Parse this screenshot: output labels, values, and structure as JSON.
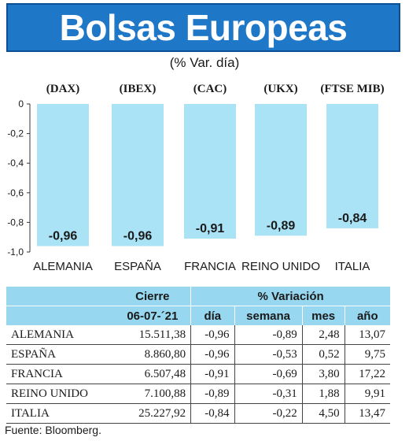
{
  "header": {
    "title": "Bolsas Europeas"
  },
  "subtitle": "(% Var. día)",
  "chart_data": {
    "type": "bar",
    "tickers": [
      "(DAX)",
      "(IBEX)",
      "(CAC)",
      "(UKX)",
      "(FTSE MIB)"
    ],
    "categories": [
      "ALEMANIA",
      "ESPAÑA",
      "FRANCIA",
      "REINO UNIDO",
      "ITALIA"
    ],
    "values": [
      -0.96,
      -0.96,
      -0.91,
      -0.89,
      -0.84
    ],
    "value_labels": [
      "-0,96",
      "-0,96",
      "-0,91",
      "-0,89",
      "-0,84"
    ],
    "ylim": [
      -1.0,
      0
    ],
    "yticks": [
      0,
      -0.2,
      -0.4,
      -0.6,
      -0.8,
      -1.0
    ],
    "ytick_labels": [
      "0",
      "-0,2",
      "-0,4",
      "-0,6",
      "-0,8",
      "-1,0"
    ],
    "bar_color": "#a9e3f5",
    "grid": false
  },
  "table": {
    "group_headers": {
      "cierre": "Cierre",
      "variacion": "% Variación"
    },
    "sub_headers": {
      "cierre_date": "06-07-´21",
      "dia": "día",
      "semana": "semana",
      "mes": "mes",
      "ano": "año"
    },
    "rows": [
      {
        "name": "ALEMANIA",
        "cierre": "15.511,38",
        "dia": "-0,96",
        "semana": "-0,89",
        "mes": "2,48",
        "ano": "13,07"
      },
      {
        "name": "ESPAÑA",
        "cierre": "8.860,80",
        "dia": "-0,96",
        "semana": "-0,53",
        "mes": "0,52",
        "ano": "9,75"
      },
      {
        "name": "FRANCIA",
        "cierre": "6.507,48",
        "dia": "-0,91",
        "semana": "-0,69",
        "mes": "3,80",
        "ano": "17,22"
      },
      {
        "name": "REINO UNIDO",
        "cierre": "7.100,88",
        "dia": "-0,89",
        "semana": "-0,31",
        "mes": "1,88",
        "ano": "9,91"
      },
      {
        "name": "ITALIA",
        "cierre": "25.227,92",
        "dia": "-0,84",
        "semana": "-0,22",
        "mes": "4,50",
        "ano": "13,47"
      }
    ]
  },
  "source": "Fuente: Bloomberg.",
  "colors": {
    "header_bg": "#1f77c8",
    "table_header_bg": "#97d7ef",
    "bar": "#a9e3f5"
  }
}
